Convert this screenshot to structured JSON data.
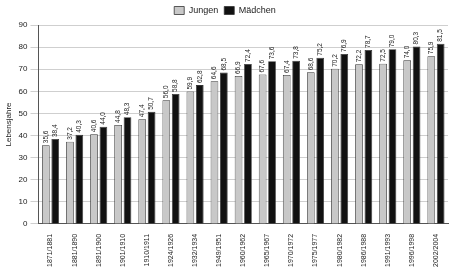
{
  "chart_data": {
    "type": "bar",
    "categories": [
      "1871/1881",
      "1881/1890",
      "1891/1900",
      "1901/1910",
      "1910/1911",
      "1924/1926",
      "1932/1934",
      "1949/1951",
      "1960/1962",
      "1965/1967",
      "1970/1972",
      "1975/1977",
      "1980/1982",
      "1986/1988",
      "1991/1993",
      "1996/1998",
      "2002/2004"
    ],
    "series": [
      {
        "name": "Jungen",
        "color": "#c8c8c8",
        "values": [
          35.6,
          37.2,
          40.6,
          44.8,
          47.4,
          56.0,
          59.9,
          64.6,
          66.9,
          67.6,
          67.4,
          68.6,
          70.2,
          72.2,
          72.5,
          74.0,
          75.9
        ],
        "value_labels": [
          "35,6",
          "37,2",
          "40,6",
          "44,8",
          "47,4",
          "56,0",
          "59,9",
          "64,6",
          "66,9",
          "67,6",
          "67,4",
          "68,6",
          "70,2",
          "72,2",
          "72,5",
          "74,0",
          "75,9"
        ]
      },
      {
        "name": "Mädchen",
        "color": "#111111",
        "values": [
          38.4,
          40.3,
          44.0,
          48.3,
          50.7,
          58.8,
          62.8,
          68.5,
          72.4,
          73.6,
          73.8,
          75.2,
          76.9,
          78.7,
          79.0,
          80.3,
          81.5
        ],
        "value_labels": [
          "38,4",
          "40,3",
          "44,0",
          "48,3",
          "50,7",
          "58,8",
          "62,8",
          "68,5",
          "72,4",
          "73,6",
          "73,8",
          "75,2",
          "76,9",
          "78,7",
          "79,0",
          "80,3",
          "81,5"
        ]
      }
    ],
    "y_label": "Lebensjahre",
    "ylim": [
      0,
      90
    ],
    "yticks": [
      0,
      10,
      20,
      30,
      40,
      50,
      60,
      70,
      80,
      90
    ],
    "grid": true,
    "legend": "top",
    "data_labels": true
  }
}
